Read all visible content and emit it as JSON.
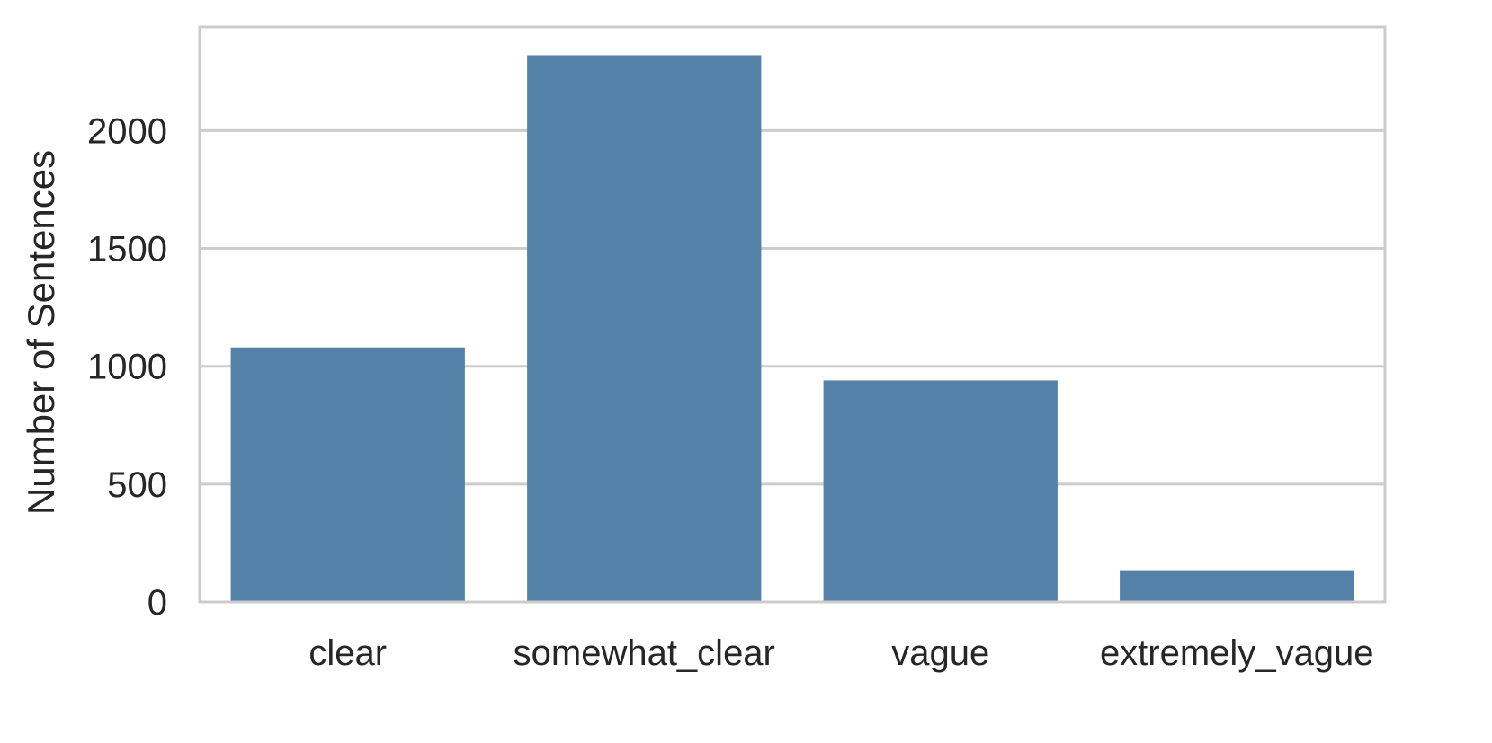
{
  "chart_data": {
    "type": "bar",
    "title": "",
    "xlabel": "",
    "ylabel": "Number of Sentences",
    "categories": [
      "clear",
      "somewhat_clear",
      "vague",
      "extremely_vague"
    ],
    "values": [
      1080,
      2320,
      940,
      135
    ],
    "ylim": [
      0,
      2440
    ],
    "yticks": [
      0,
      500,
      1000,
      1500,
      2000
    ],
    "grid": "horizontal",
    "bar_color": "#5481a7",
    "grid_color": "#cccccc",
    "frame_color": "#cccccc"
  }
}
